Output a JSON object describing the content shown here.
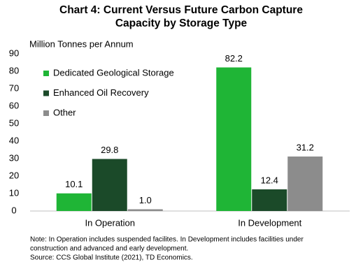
{
  "chart_data": {
    "type": "bar",
    "title": [
      "Chart 4: Current Versus Future Carbon Capture",
      "Capacity by Storage Type"
    ],
    "y_label": "Million Tonnes per Annum",
    "categories": [
      "In Operation",
      "In Development"
    ],
    "series": [
      {
        "name": "Dedicated Geological Storage",
        "color": "#1fb536",
        "values": [
          10.1,
          82.2
        ]
      },
      {
        "name": "Enhanced Oil Recovery",
        "color": "#1b4a29",
        "values": [
          29.8,
          12.4
        ]
      },
      {
        "name": "Other",
        "color": "#8c8c8c",
        "values": [
          1,
          31.2
        ],
        "value_labels": [
          "1.0",
          "31.2"
        ]
      }
    ],
    "ylim": [
      0,
      90
    ],
    "yticks": [
      0,
      10,
      20,
      30,
      40,
      50,
      60,
      70,
      80,
      90
    ],
    "legend": "upper-left",
    "notes": [
      "Note: In Operation includes suspended facilites. In Development  includes facilities under",
      "construction and advanced and early development.",
      "Source: CCS Global Institute  (2021), TD Economics."
    ]
  }
}
